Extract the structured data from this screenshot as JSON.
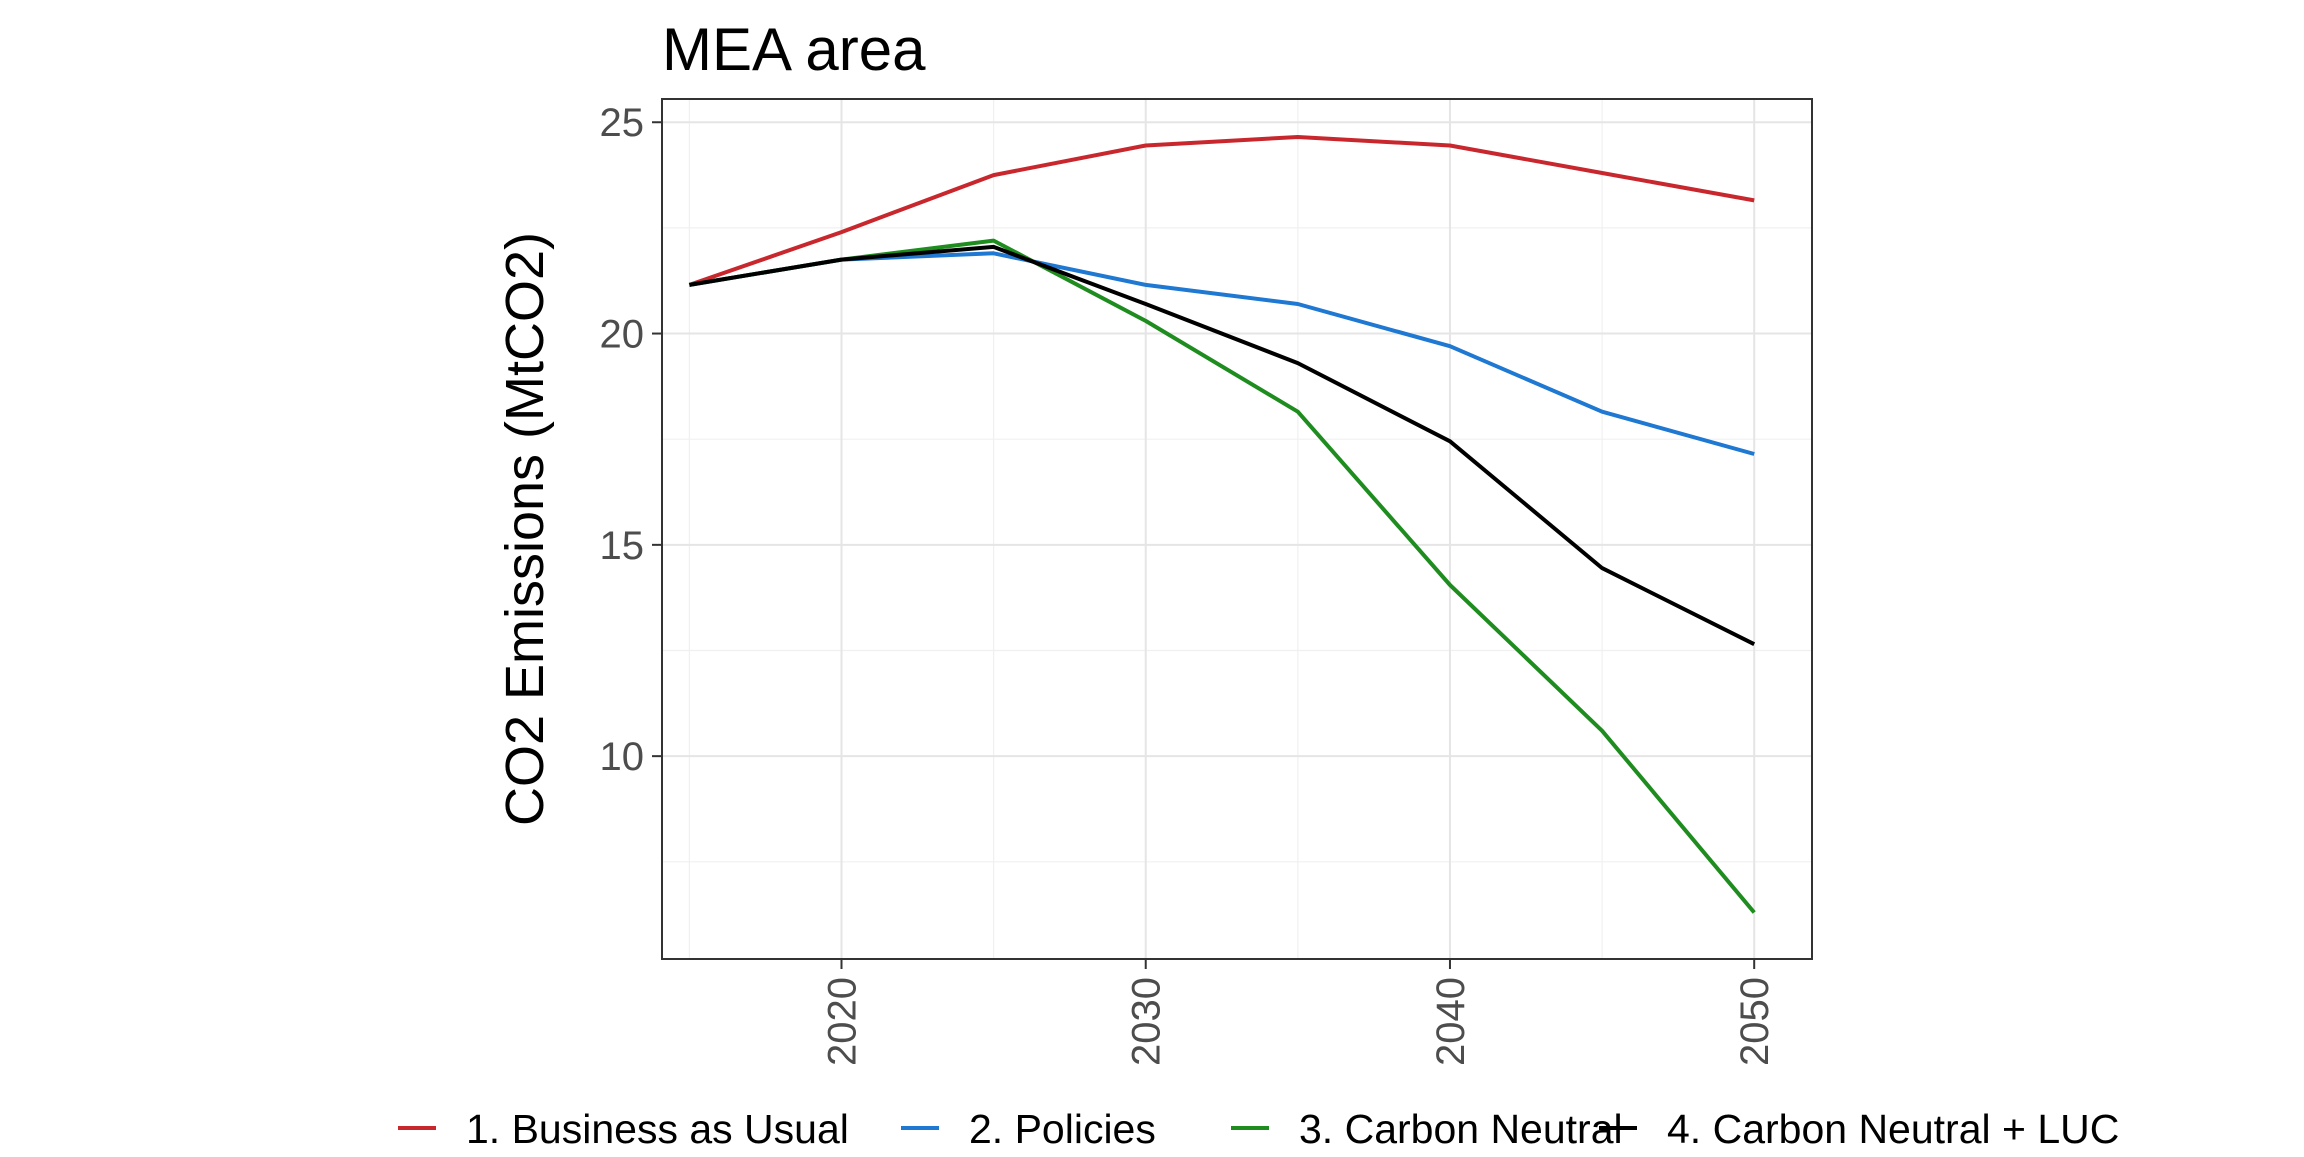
{
  "chart_data": {
    "type": "line",
    "title": "MEA area",
    "xlabel": "",
    "ylabel": "CO2 Emissions (MtCO2)",
    "x": [
      2015,
      2020,
      2025,
      2030,
      2035,
      2040,
      2045,
      2050
    ],
    "xticks": [
      2020,
      2030,
      2040,
      2050
    ],
    "xtick_labels": [
      "2020",
      "2030",
      "2040",
      "2050"
    ],
    "yticks": [
      10,
      15,
      20,
      25
    ],
    "ytick_labels": [
      "10",
      "15",
      "20",
      "25"
    ],
    "xlim": [
      2014.1,
      2051.9
    ],
    "ylim": [
      5.2,
      25.55
    ],
    "grid": true,
    "legend_position": "bottom",
    "series": [
      {
        "name": "1. Business as Usual",
        "color": "#c8282d",
        "values": [
          21.15,
          22.4,
          23.75,
          24.45,
          24.65,
          24.45,
          23.8,
          23.15
        ]
      },
      {
        "name": "2. Policies",
        "color": "#1f78d1",
        "values": [
          21.15,
          21.75,
          21.9,
          21.15,
          20.7,
          19.7,
          18.15,
          17.15
        ]
      },
      {
        "name": "3. Carbon Neutral",
        "color": "#1e8c1e",
        "values": [
          21.15,
          21.75,
          22.2,
          20.3,
          18.15,
          14.05,
          10.6,
          6.3
        ]
      },
      {
        "name": "4. Carbon Neutral + LUC",
        "color": "#000000",
        "values": [
          21.15,
          21.75,
          22.05,
          20.7,
          19.3,
          17.45,
          14.45,
          12.65
        ]
      }
    ]
  }
}
